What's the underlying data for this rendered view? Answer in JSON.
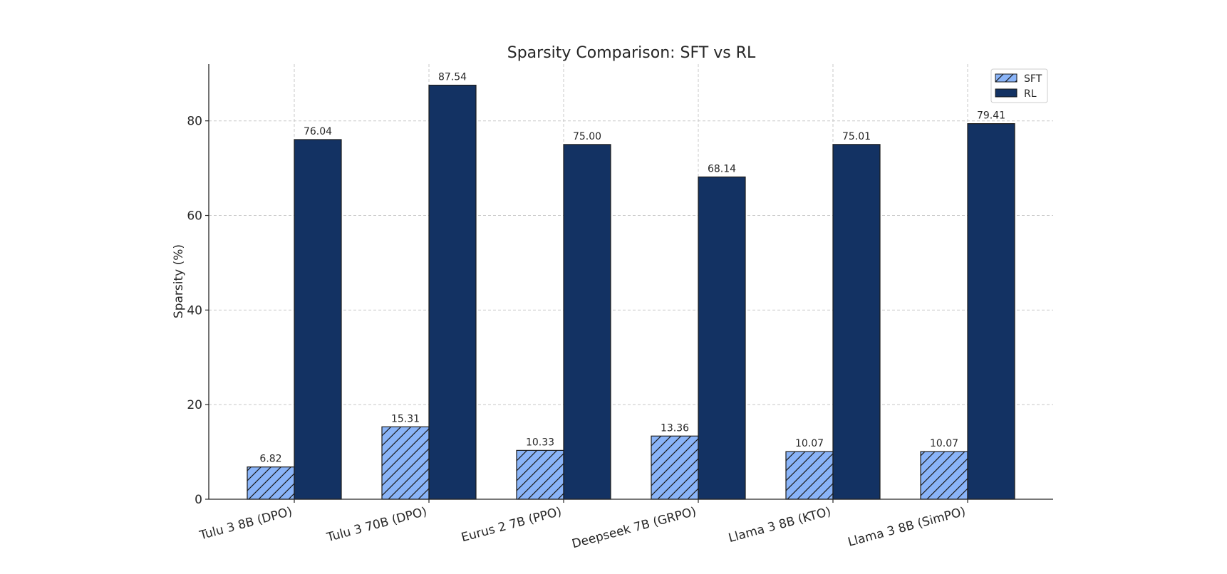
{
  "chart_data": {
    "type": "bar",
    "title": "Sparsity Comparison: SFT vs RL",
    "xlabel": "",
    "ylabel": "Sparsity (%)",
    "ylim": [
      0,
      92
    ],
    "yticks": [
      0,
      20,
      40,
      60,
      80
    ],
    "grid": true,
    "legend_position": "top-right",
    "categories": [
      "Tulu 3 8B (DPO)",
      "Tulu 3 70B (DPO)",
      "Eurus 2 7B (PPO)",
      "Deepseek 7B (GRPO)",
      "Llama 3 8B (KTO)",
      "Llama 3 8B (SimPO)"
    ],
    "series": [
      {
        "name": "SFT",
        "values": [
          6.82,
          15.31,
          10.33,
          13.36,
          10.07,
          10.07
        ],
        "color": "#8ab4f8",
        "hatch": true
      },
      {
        "name": "RL",
        "values": [
          76.04,
          87.54,
          75.0,
          68.14,
          75.01,
          79.41
        ],
        "color": "#133263",
        "hatch": false
      }
    ],
    "value_labels": [
      [
        "6.82",
        "15.31",
        "10.33",
        "13.36",
        "10.07",
        "10.07"
      ],
      [
        "76.04",
        "87.54",
        "75.00",
        "68.14",
        "75.01",
        "79.41"
      ]
    ]
  }
}
